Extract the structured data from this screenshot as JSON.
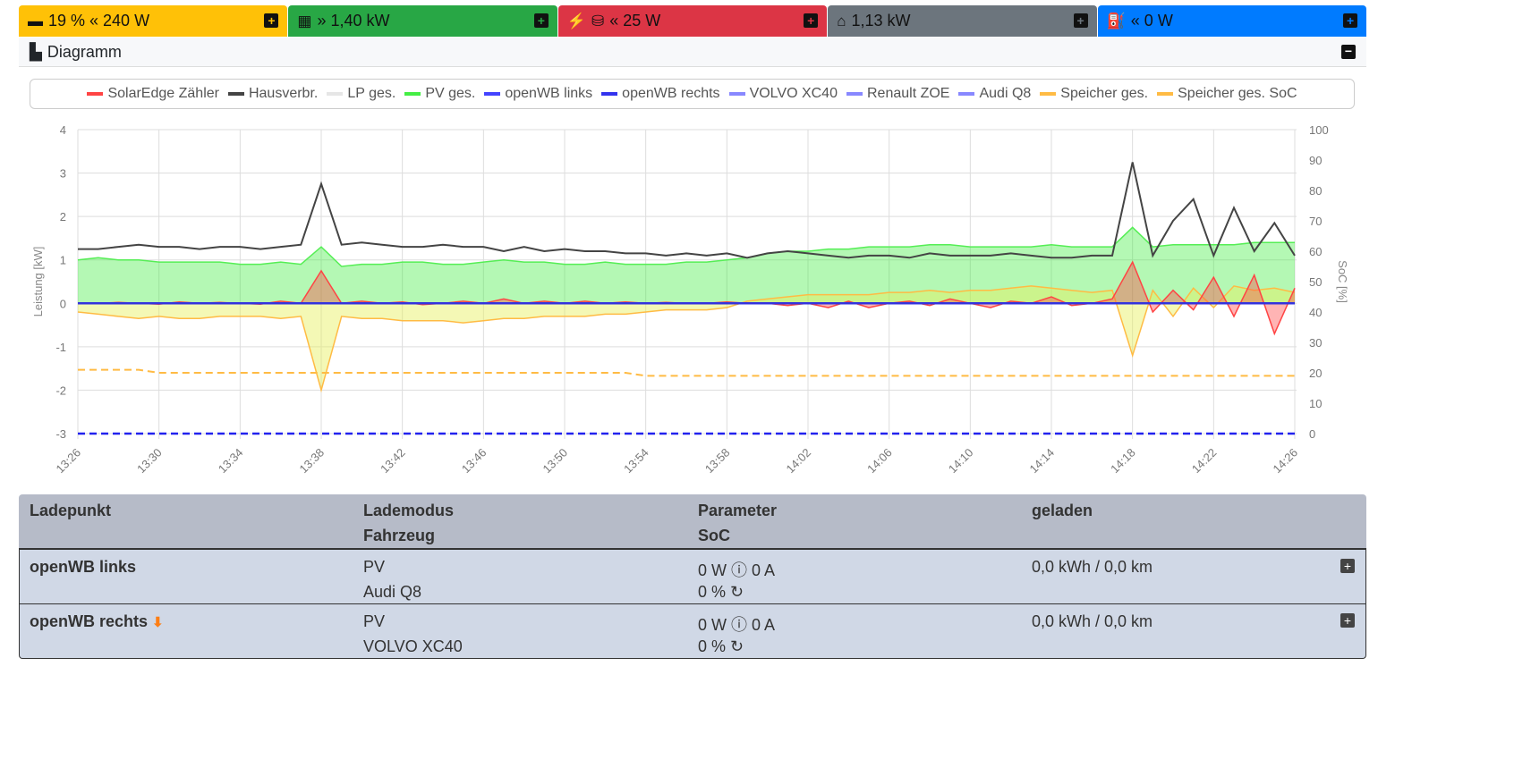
{
  "topbar": {
    "battery": {
      "text": "19 % « 240 W",
      "color": "#ffc107"
    },
    "pv": {
      "text": "» 1,40 kW",
      "color": "#28a745"
    },
    "grid": {
      "text": "« 25 W",
      "color": "#dc3545"
    },
    "house": {
      "text": "1,13 kW",
      "color": "#6c757d"
    },
    "charge": {
      "text": "« 0 W",
      "color": "#007bff"
    },
    "plus": "+"
  },
  "diagram": {
    "title": "Diagramm",
    "collapse": "−"
  },
  "chart_data": {
    "type": "line",
    "x_start": "13:26",
    "x_step_minutes": 1,
    "xticks": [
      "13:26",
      "13:30",
      "13:34",
      "13:38",
      "13:42",
      "13:46",
      "13:50",
      "13:54",
      "13:58",
      "14:02",
      "14:06",
      "14:10",
      "14:14",
      "14:18",
      "14:22",
      "14:26"
    ],
    "ylabel": "Leistung [kW]",
    "ylim": [
      -3,
      4
    ],
    "yticks": [
      "4",
      "3",
      "2",
      "1",
      "0",
      "-1",
      "-2",
      "-3"
    ],
    "y2label": "SoC [%]",
    "y2lim": [
      0,
      100
    ],
    "y2ticks": [
      "100",
      "90",
      "80",
      "70",
      "60",
      "50",
      "40",
      "30",
      "20",
      "10",
      "0"
    ],
    "legend": [
      {
        "name": "SolarEdge Zähler",
        "color": "#ff4444"
      },
      {
        "name": "Hausverbr.",
        "color": "#444444"
      },
      {
        "name": "LP ges.",
        "color": "#e6e6e6"
      },
      {
        "name": "PV ges.",
        "color": "#44ee44"
      },
      {
        "name": "openWB links",
        "color": "#4444ff"
      },
      {
        "name": "openWB rechts",
        "color": "#3333ee"
      },
      {
        "name": "VOLVO XC40",
        "color": "#8888ff"
      },
      {
        "name": "Renault ZOE",
        "color": "#8888ff"
      },
      {
        "name": "Audi Q8",
        "color": "#8888ff"
      },
      {
        "name": "Speicher ges.",
        "color": "#ffbb44"
      },
      {
        "name": "Speicher ges. SoC",
        "color": "#ffbb44"
      }
    ],
    "series": {
      "haus": [
        1.25,
        1.25,
        1.3,
        1.35,
        1.3,
        1.3,
        1.25,
        1.3,
        1.3,
        1.25,
        1.3,
        1.35,
        2.75,
        1.35,
        1.4,
        1.35,
        1.3,
        1.3,
        1.35,
        1.3,
        1.3,
        1.2,
        1.3,
        1.2,
        1.25,
        1.2,
        1.2,
        1.15,
        1.15,
        1.1,
        1.15,
        1.1,
        1.15,
        1.05,
        1.15,
        1.2,
        1.15,
        1.1,
        1.05,
        1.1,
        1.1,
        1.05,
        1.15,
        1.1,
        1.1,
        1.1,
        1.15,
        1.1,
        1.05,
        1.05,
        1.1,
        1.1,
        3.25,
        1.1,
        1.9,
        2.4,
        1.1,
        2.2,
        1.2,
        1.85,
        1.1
      ],
      "pv": [
        1.0,
        1.05,
        1.0,
        1.0,
        0.95,
        0.95,
        0.95,
        0.95,
        0.9,
        0.9,
        0.95,
        0.9,
        1.3,
        0.85,
        0.9,
        0.9,
        0.95,
        0.95,
        0.9,
        0.9,
        0.95,
        1.0,
        0.95,
        0.95,
        0.9,
        0.9,
        0.95,
        0.9,
        0.9,
        0.9,
        0.95,
        0.95,
        1.0,
        1.05,
        1.15,
        1.2,
        1.2,
        1.25,
        1.25,
        1.3,
        1.3,
        1.3,
        1.35,
        1.35,
        1.3,
        1.3,
        1.3,
        1.3,
        1.35,
        1.3,
        1.3,
        1.3,
        1.75,
        1.3,
        1.35,
        1.35,
        1.35,
        1.35,
        1.4,
        1.4,
        1.4
      ],
      "speicher": [
        -0.2,
        -0.25,
        -0.3,
        -0.35,
        -0.3,
        -0.35,
        -0.35,
        -0.3,
        -0.3,
        -0.3,
        -0.35,
        -0.3,
        -2.0,
        -0.3,
        -0.35,
        -0.35,
        -0.4,
        -0.4,
        -0.4,
        -0.45,
        -0.4,
        -0.35,
        -0.35,
        -0.3,
        -0.3,
        -0.3,
        -0.25,
        -0.25,
        -0.2,
        -0.15,
        -0.15,
        -0.15,
        -0.1,
        0.05,
        0.1,
        0.15,
        0.2,
        0.2,
        0.2,
        0.2,
        0.25,
        0.25,
        0.3,
        0.25,
        0.3,
        0.3,
        0.35,
        0.4,
        0.35,
        0.3,
        0.25,
        0.3,
        -1.2,
        0.3,
        -0.3,
        0.35,
        -0.1,
        0.4,
        0.3,
        0.35,
        0.25
      ],
      "zaehler": [
        0,
        0,
        0.02,
        0,
        -0.02,
        0.03,
        0,
        0.02,
        0,
        -0.02,
        0.05,
        0,
        0.75,
        0,
        0.05,
        0,
        0.03,
        -0.03,
        0,
        0.05,
        0,
        0.1,
        0,
        0.05,
        0,
        0.05,
        0,
        0.03,
        0,
        0.02,
        0,
        0,
        0.03,
        0,
        0,
        -0.05,
        0,
        -0.1,
        0.05,
        -0.1,
        0,
        0.05,
        -0.05,
        0.1,
        0,
        -0.1,
        0.05,
        0,
        0.15,
        -0.05,
        0,
        0.1,
        0.95,
        -0.2,
        0.3,
        -0.15,
        0.6,
        -0.3,
        0.65,
        -0.7,
        0.35
      ],
      "speicher_soc": [
        21,
        21,
        21,
        21,
        20,
        20,
        20,
        20,
        20,
        20,
        20,
        20,
        20,
        20,
        20,
        20,
        20,
        20,
        20,
        20,
        20,
        20,
        20,
        20,
        20,
        20,
        20,
        20,
        19,
        19,
        19,
        19,
        19,
        19,
        19,
        19,
        19,
        19,
        19,
        19,
        19,
        19,
        19,
        19,
        19,
        19,
        19,
        19,
        19,
        19,
        19,
        19,
        19,
        19,
        19,
        19,
        19,
        19,
        19,
        19,
        19
      ],
      "openwb_power": 0,
      "vehicle_soc": 0
    }
  },
  "table": {
    "headers": {
      "ladepunkt": "Ladepunkt",
      "lademodus": "Lademodus",
      "fahrzeug": "Fahrzeug",
      "parameter": "Parameter",
      "soc": "SoC",
      "geladen": "geladen"
    },
    "rows": [
      {
        "name": "openWB links",
        "mode": "PV",
        "vehicle": "Audi Q8",
        "param": "0 W ⓘ 0 A",
        "soc": "0 % ↻",
        "charged": "0,0 kWh / 0,0 km",
        "plug": ""
      },
      {
        "name": "openWB rechts",
        "mode": "PV",
        "vehicle": "VOLVO XC40",
        "param": "0 W ⓘ 0 A",
        "soc": "0 % ↻",
        "charged": "0,0 kWh / 0,0 km",
        "plug": "⬇"
      }
    ]
  }
}
